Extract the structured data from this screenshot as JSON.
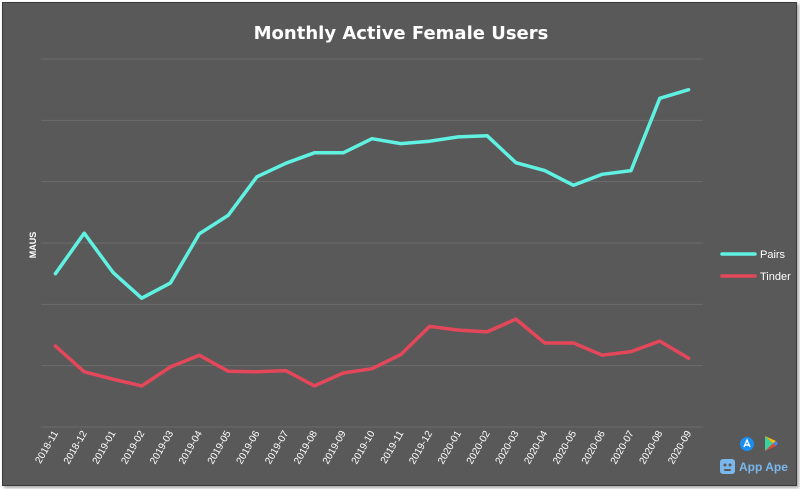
{
  "colors": {
    "background": "#595959",
    "pairs": "#5ff2e2",
    "tinder": "#e5475a",
    "text": "#ffffff",
    "grid": "#6c6c6c"
  },
  "logo": {
    "text": "App Ape",
    "icons": [
      "app-store-icon",
      "google-play-icon",
      "app-ape-logo-icon"
    ]
  },
  "chart_data": {
    "type": "line",
    "title": "Monthly  Active Female Users",
    "xlabel": "",
    "ylabel": "MAUS",
    "ylim": [
      0,
      6
    ],
    "grid": true,
    "legend_position": "right",
    "categories": [
      "2018-11",
      "2018-12",
      "2019-01",
      "2019-02",
      "2019-03",
      "2019-04",
      "2019-05",
      "2019-06",
      "2019-07",
      "2019-08",
      "2019-09",
      "2019-10",
      "2019-11",
      "2019-12",
      "2020-01",
      "2020-02",
      "2020-03",
      "2020-04",
      "2020-05",
      "2020-06",
      "2020-07",
      "2020-08",
      "2020-09"
    ],
    "series": [
      {
        "name": "Pairs",
        "color": "#5ff2e2",
        "values": [
          2.5,
          3.16,
          2.52,
          2.1,
          2.35,
          3.15,
          3.45,
          4.08,
          4.3,
          4.47,
          4.47,
          4.7,
          4.62,
          4.66,
          4.73,
          4.75,
          4.31,
          4.18,
          3.94,
          4.12,
          4.18,
          5.36,
          5.5
        ]
      },
      {
        "name": "Tinder",
        "color": "#e5475a",
        "values": [
          1.32,
          0.9,
          0.78,
          0.67,
          0.98,
          1.17,
          0.91,
          0.9,
          0.92,
          0.67,
          0.88,
          0.95,
          1.18,
          1.64,
          1.58,
          1.55,
          1.76,
          1.37,
          1.37,
          1.17,
          1.23,
          1.4,
          1.12
        ]
      }
    ]
  }
}
